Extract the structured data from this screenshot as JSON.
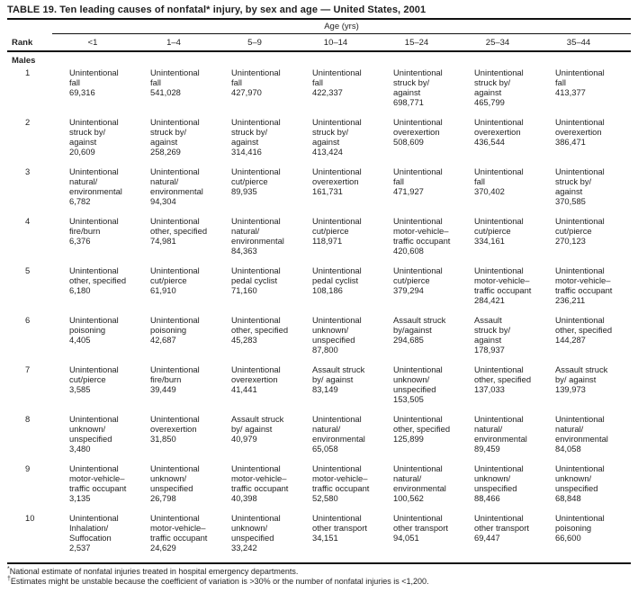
{
  "title": "TABLE 19. Ten leading causes of nonfatal* injury, by sex and age — United States, 2001",
  "colors": {
    "background": "#ffffff",
    "text": "#1f1f1f",
    "rule": "#111111"
  },
  "table": {
    "age_group_header": "Age (yrs)",
    "rank_header": "Rank",
    "age_columns": [
      "<1",
      "1–4",
      "5–9",
      "10–14",
      "15–24",
      "25–34",
      "35–44"
    ],
    "section_label": "Males",
    "rows": [
      {
        "rank": "1",
        "cells": [
          {
            "cause": [
              "Unintentional",
              "fall"
            ],
            "count": "69,316"
          },
          {
            "cause": [
              "Unintentional",
              "fall"
            ],
            "count": "541,028"
          },
          {
            "cause": [
              "Unintentional",
              "fall"
            ],
            "count": "427,970"
          },
          {
            "cause": [
              "Unintentional",
              "fall"
            ],
            "count": "422,337"
          },
          {
            "cause": [
              "Unintentional",
              "struck by/",
              "against"
            ],
            "count": "698,771"
          },
          {
            "cause": [
              "Unintentional",
              "struck by/",
              "against"
            ],
            "count": "465,799"
          },
          {
            "cause": [
              "Unintentional",
              "fall"
            ],
            "count": "413,377"
          }
        ]
      },
      {
        "rank": "2",
        "cells": [
          {
            "cause": [
              "Unintentional",
              "struck by/",
              "against"
            ],
            "count": "20,609"
          },
          {
            "cause": [
              "Unintentional",
              "struck by/",
              "against"
            ],
            "count": "258,269"
          },
          {
            "cause": [
              "Unintentional",
              "struck by/",
              "against"
            ],
            "count": "314,416"
          },
          {
            "cause": [
              "Unintentional",
              "struck by/",
              "against"
            ],
            "count": "413,424"
          },
          {
            "cause": [
              "Unintentional",
              "overexertion"
            ],
            "count": "508,609"
          },
          {
            "cause": [
              "Unintentional",
              "overexertion"
            ],
            "count": "436,544"
          },
          {
            "cause": [
              "Unintentional",
              "overexertion"
            ],
            "count": "386,471"
          }
        ]
      },
      {
        "rank": "3",
        "cells": [
          {
            "cause": [
              "Unintentional",
              "natural/",
              "environmental"
            ],
            "count": "6,782"
          },
          {
            "cause": [
              "Unintentional",
              "natural/",
              "environmental"
            ],
            "count": "94,304"
          },
          {
            "cause": [
              "Unintentional",
              "cut/pierce"
            ],
            "count": "89,935"
          },
          {
            "cause": [
              "Unintentional",
              "overexertion"
            ],
            "count": "161,731"
          },
          {
            "cause": [
              "Unintentional",
              "fall"
            ],
            "count": "471,927"
          },
          {
            "cause": [
              "Unintentional",
              "fall"
            ],
            "count": "370,402"
          },
          {
            "cause": [
              "Unintentional",
              "struck by/",
              "against"
            ],
            "count": "370,585"
          }
        ]
      },
      {
        "rank": "4",
        "cells": [
          {
            "cause": [
              "Unintentional",
              "fire/burn"
            ],
            "count": "6,376"
          },
          {
            "cause": [
              "Unintentional",
              "other, specified"
            ],
            "count": "74,981"
          },
          {
            "cause": [
              "Unintentional",
              "natural/",
              "environmental"
            ],
            "count": "84,363"
          },
          {
            "cause": [
              "Unintentional",
              "cut/pierce"
            ],
            "count": "118,971"
          },
          {
            "cause": [
              "Unintentional",
              "motor-vehicle–",
              "traffic occupant"
            ],
            "count": "420,608"
          },
          {
            "cause": [
              "Unintentional",
              "cut/pierce"
            ],
            "count": "334,161"
          },
          {
            "cause": [
              "Unintentional",
              "cut/pierce"
            ],
            "count": "270,123"
          }
        ]
      },
      {
        "rank": "5",
        "cells": [
          {
            "cause": [
              "Unintentional",
              "other, specified"
            ],
            "count": "6,180"
          },
          {
            "cause": [
              "Unintentional",
              "cut/pierce"
            ],
            "count": "61,910"
          },
          {
            "cause": [
              "Unintentional",
              "pedal cyclist"
            ],
            "count": "71,160"
          },
          {
            "cause": [
              "Unintentional",
              "pedal cyclist"
            ],
            "count": "108,186"
          },
          {
            "cause": [
              "Unintentional",
              "cut/pierce"
            ],
            "count": "379,294"
          },
          {
            "cause": [
              "Unintentional",
              "motor-vehicle–",
              "traffic occupant"
            ],
            "count": "284,421"
          },
          {
            "cause": [
              "Unintentional",
              "motor-vehicle–",
              "traffic occupant"
            ],
            "count": "236,211"
          }
        ]
      },
      {
        "rank": "6",
        "cells": [
          {
            "cause": [
              "Unintentional",
              "poisoning"
            ],
            "count": "4,405"
          },
          {
            "cause": [
              "Unintentional",
              "poisoning"
            ],
            "count": "42,687"
          },
          {
            "cause": [
              "Unintentional",
              "other, specified"
            ],
            "count": "45,283"
          },
          {
            "cause": [
              "Unintentional",
              "unknown/",
              "unspecified"
            ],
            "count": "87,800"
          },
          {
            "cause": [
              "Assault struck",
              "by/against"
            ],
            "count": "294,685"
          },
          {
            "cause": [
              "Assault",
              "struck by/",
              "against"
            ],
            "count": "178,937"
          },
          {
            "cause": [
              "Unintentional",
              "other, specified"
            ],
            "count": "144,287"
          }
        ]
      },
      {
        "rank": "7",
        "cells": [
          {
            "cause": [
              "Unintentional",
              "cut/pierce"
            ],
            "count": "3,585"
          },
          {
            "cause": [
              "Unintentional",
              "fire/burn"
            ],
            "count": "39,449"
          },
          {
            "cause": [
              "Unintentional",
              "overexertion"
            ],
            "count": "41,441"
          },
          {
            "cause": [
              "Assault struck",
              "by/ against"
            ],
            "count": "83,149"
          },
          {
            "cause": [
              "Unintentional",
              "unknown/",
              "unspecified"
            ],
            "count": "153,505"
          },
          {
            "cause": [
              "Unintentional",
              "other, specified"
            ],
            "count": "137,033"
          },
          {
            "cause": [
              "Assault struck",
              "by/ against"
            ],
            "count": "139,973"
          }
        ]
      },
      {
        "rank": "8",
        "cells": [
          {
            "cause": [
              "Unintentional",
              "unknown/",
              "unspecified"
            ],
            "count": "3,480"
          },
          {
            "cause": [
              "Unintentional",
              "overexertion"
            ],
            "count": "31,850"
          },
          {
            "cause": [
              "Assault struck",
              "by/ against"
            ],
            "count": "40,979"
          },
          {
            "cause": [
              "Unintentional",
              "natural/",
              "environmental"
            ],
            "count": "65,058"
          },
          {
            "cause": [
              "Unintentional",
              "other, specified"
            ],
            "count": "125,899"
          },
          {
            "cause": [
              "Unintentional",
              "natural/",
              "environmental"
            ],
            "count": "89,459"
          },
          {
            "cause": [
              "Unintentional",
              "natural/",
              "environmental"
            ],
            "count": "84,058"
          }
        ]
      },
      {
        "rank": "9",
        "cells": [
          {
            "cause": [
              "Unintentional",
              "motor-vehicle–",
              "traffic occupant"
            ],
            "count": "3,135"
          },
          {
            "cause": [
              "Unintentional",
              "unknown/",
              "unspecified"
            ],
            "count": "26,798"
          },
          {
            "cause": [
              "Unintentional",
              "motor-vehicle–",
              "traffic occupant"
            ],
            "count": "40,398"
          },
          {
            "cause": [
              "Unintentional",
              "motor-vehicle–",
              "traffic occupant"
            ],
            "count": "52,580"
          },
          {
            "cause": [
              "Unintentional",
              "natural/",
              "environmental"
            ],
            "count": "100,562"
          },
          {
            "cause": [
              "Unintentional",
              "unknown/",
              "unspecified"
            ],
            "count": "88,466"
          },
          {
            "cause": [
              "Unintentional",
              "unknown/",
              "unspecified"
            ],
            "count": "68,848"
          }
        ]
      },
      {
        "rank": "10",
        "cells": [
          {
            "cause": [
              "Unintentional",
              "Inhalation/",
              "Suffocation"
            ],
            "count": "2,537"
          },
          {
            "cause": [
              "Unintentional",
              "motor-vehicle–",
              "traffic occupant"
            ],
            "count": "24,629"
          },
          {
            "cause": [
              "Unintentional",
              "unknown/",
              "unspecified"
            ],
            "count": "33,242"
          },
          {
            "cause": [
              "Unintentional",
              "other transport"
            ],
            "count": "34,151"
          },
          {
            "cause": [
              "Unintentional",
              "other transport"
            ],
            "count": "94,051"
          },
          {
            "cause": [
              "Unintentional",
              "other transport"
            ],
            "count": "69,447"
          },
          {
            "cause": [
              "Unintentional",
              "poisoning"
            ],
            "count": "66,600"
          }
        ]
      }
    ]
  },
  "footnotes": [
    {
      "marker": "*",
      "text": "National estimate of nonfatal injuries treated in hospital emergency departments."
    },
    {
      "marker": "†",
      "text": "Estimates might be unstable because the coefficient of variation is >30% or the number of nonfatal injuries is <1,200."
    }
  ]
}
